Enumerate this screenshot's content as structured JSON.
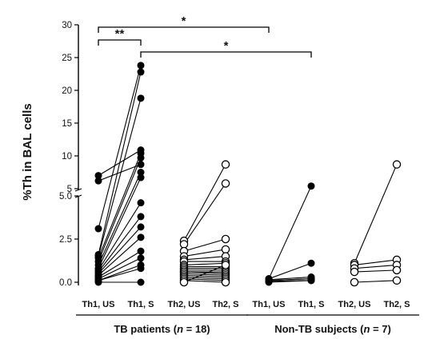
{
  "chart_data": {
    "type": "scatter",
    "ylabel": "%Th in BAL cells",
    "y_axis": {
      "break": true,
      "lower_segment": {
        "range": [
          0,
          5
        ],
        "ticks": [
          "0.0",
          "2.5",
          "5.0"
        ]
      },
      "upper_segment": {
        "range": [
          5,
          30
        ],
        "ticks": [
          "5",
          "10",
          "15",
          "20",
          "25",
          "30"
        ]
      }
    },
    "categories": [
      "Th1, US",
      "Th1, S",
      "Th2, US",
      "Th2, S",
      "Th1, US",
      "Th1, S",
      "Th2, US",
      "Th2, S"
    ],
    "groups": [
      {
        "name_prefix": "TB patients (",
        "n_symbol": "n",
        "name_suffix": " = 18)",
        "categories": [
          0,
          1,
          2,
          3
        ]
      },
      {
        "name_prefix": "Non-TB subjects (",
        "n_symbol": "n",
        "name_suffix": " = 7)",
        "categories": [
          4,
          5,
          6,
          7
        ]
      }
    ],
    "marker_styles": {
      "Th1": "filled",
      "Th2": "open"
    },
    "colors": {
      "filled": "#000000",
      "open": "#ffffff",
      "line": "#000000"
    },
    "paired_series": [
      {
        "pair": [
          0,
          1
        ],
        "marker": "filled",
        "values": [
          [
            7.0,
            10.9
          ],
          [
            6.2,
            8.7
          ],
          [
            3.1,
            23.8
          ],
          [
            1.6,
            22.8
          ],
          [
            1.5,
            18.8
          ],
          [
            1.4,
            10.4
          ],
          [
            1.2,
            9.7
          ],
          [
            1.0,
            7.5
          ],
          [
            0.8,
            6.7
          ],
          [
            0.7,
            4.6
          ],
          [
            0.6,
            3.8
          ],
          [
            0.5,
            3.2
          ],
          [
            0.4,
            2.6
          ],
          [
            0.3,
            1.8
          ],
          [
            0.2,
            1.4
          ],
          [
            0.1,
            1.0
          ],
          [
            0.1,
            0.8
          ],
          [
            0.0,
            0.0
          ]
        ]
      },
      {
        "pair": [
          2,
          3
        ],
        "marker": "open",
        "values": [
          [
            2.4,
            8.7
          ],
          [
            2.2,
            5.8
          ],
          [
            1.8,
            2.5
          ],
          [
            1.5,
            1.9
          ],
          [
            1.3,
            1.5
          ],
          [
            1.2,
            1.2
          ],
          [
            1.0,
            1.1
          ],
          [
            0.9,
            0.9
          ],
          [
            0.8,
            0.8
          ],
          [
            0.7,
            0.7
          ],
          [
            0.6,
            0.6
          ],
          [
            0.6,
            0.5
          ],
          [
            0.5,
            0.4
          ],
          [
            0.4,
            0.3
          ],
          [
            0.3,
            0.2
          ],
          [
            0.2,
            0.1
          ],
          [
            0.1,
            0.0
          ],
          [
            0.0,
            1.0
          ]
        ]
      },
      {
        "pair": [
          4,
          5
        ],
        "marker": "filled",
        "values": [
          [
            0.2,
            5.4
          ],
          [
            0.2,
            1.1
          ],
          [
            0.15,
            0.3
          ],
          [
            0.1,
            0.2
          ],
          [
            0.1,
            0.2
          ],
          [
            0.05,
            0.1
          ],
          [
            0.0,
            0.1
          ]
        ]
      },
      {
        "pair": [
          6,
          7
        ],
        "marker": "open",
        "values": [
          [
            1.1,
            8.7
          ],
          [
            1.0,
            1.3
          ],
          [
            0.8,
            1.0
          ],
          [
            0.6,
            0.7
          ],
          [
            0.0,
            0.1
          ]
        ]
      }
    ],
    "significance": [
      {
        "from": 0,
        "to": 1,
        "label": "**"
      },
      {
        "from": 0,
        "to": 4,
        "label": "*"
      },
      {
        "from": 1,
        "to": 5,
        "label": "*"
      }
    ]
  }
}
